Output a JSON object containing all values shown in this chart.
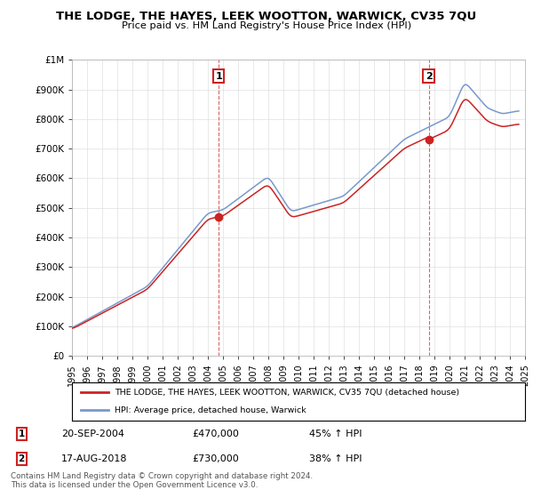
{
  "title": "THE LODGE, THE HAYES, LEEK WOOTTON, WARWICK, CV35 7QU",
  "subtitle": "Price paid vs. HM Land Registry's House Price Index (HPI)",
  "background_color": "#ffffff",
  "plot_bg_color": "#ffffff",
  "grid_color": "#e0e0e0",
  "legend_label_red": "THE LODGE, THE HAYES, LEEK WOOTTON, WARWICK, CV35 7QU (detached house)",
  "legend_label_blue": "HPI: Average price, detached house, Warwick",
  "footnote": "Contains HM Land Registry data © Crown copyright and database right 2024.\nThis data is licensed under the Open Government Licence v3.0.",
  "annotation1_label": "1",
  "annotation1_date": "20-SEP-2004",
  "annotation1_price": "£470,000",
  "annotation1_hpi": "45% ↑ HPI",
  "annotation2_label": "2",
  "annotation2_date": "17-AUG-2018",
  "annotation2_price": "£730,000",
  "annotation2_hpi": "38% ↑ HPI",
  "sale1_x": 2004.72,
  "sale1_y": 470000,
  "sale2_x": 2018.62,
  "sale2_y": 730000,
  "xmin": 1995,
  "xmax": 2025,
  "ymin": 0,
  "ymax": 1000000,
  "yticks": [
    0,
    100000,
    200000,
    300000,
    400000,
    500000,
    600000,
    700000,
    800000,
    900000,
    1000000
  ],
  "ytick_labels": [
    "£0",
    "£100K",
    "£200K",
    "£300K",
    "£400K",
    "£500K",
    "£600K",
    "£700K",
    "£800K",
    "£900K",
    "£1M"
  ],
  "xticks": [
    1995,
    1996,
    1997,
    1998,
    1999,
    2000,
    2001,
    2002,
    2003,
    2004,
    2005,
    2006,
    2007,
    2008,
    2009,
    2010,
    2011,
    2012,
    2013,
    2014,
    2015,
    2016,
    2017,
    2018,
    2019,
    2020,
    2021,
    2022,
    2023,
    2024,
    2025
  ]
}
